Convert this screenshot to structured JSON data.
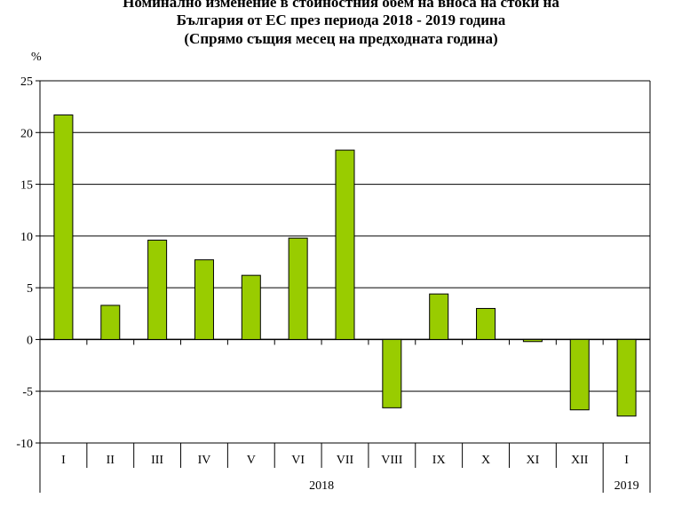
{
  "chart_data": {
    "type": "bar",
    "title_lines": [
      "Номинално изменение в стойностния обем на вноса на стоки на",
      "България от ЕС през периода 2018 - 2019 година",
      "(Спрямо същия месец на предходната година)"
    ],
    "ylabel": "%",
    "ylim": [
      -10,
      25
    ],
    "yticks": [
      25,
      20,
      15,
      10,
      5,
      0,
      -5,
      -10
    ],
    "categories": [
      "I",
      "II",
      "III",
      "IV",
      "V",
      "VI",
      "VII",
      "VIII",
      "IX",
      "X",
      "XI",
      "XII",
      "I"
    ],
    "values": [
      21.7,
      3.3,
      9.6,
      7.7,
      6.2,
      9.8,
      18.3,
      -6.6,
      4.4,
      3.0,
      -0.2,
      -6.8,
      -7.4
    ],
    "year_groups": [
      {
        "label": "2018",
        "count": 12
      },
      {
        "label": "2019",
        "count": 1
      }
    ],
    "grid": true,
    "colors": {
      "bar": "#99CC00",
      "bar_stroke": "#000000",
      "grid": "#000000",
      "plot_bg": "#ffffff"
    }
  }
}
